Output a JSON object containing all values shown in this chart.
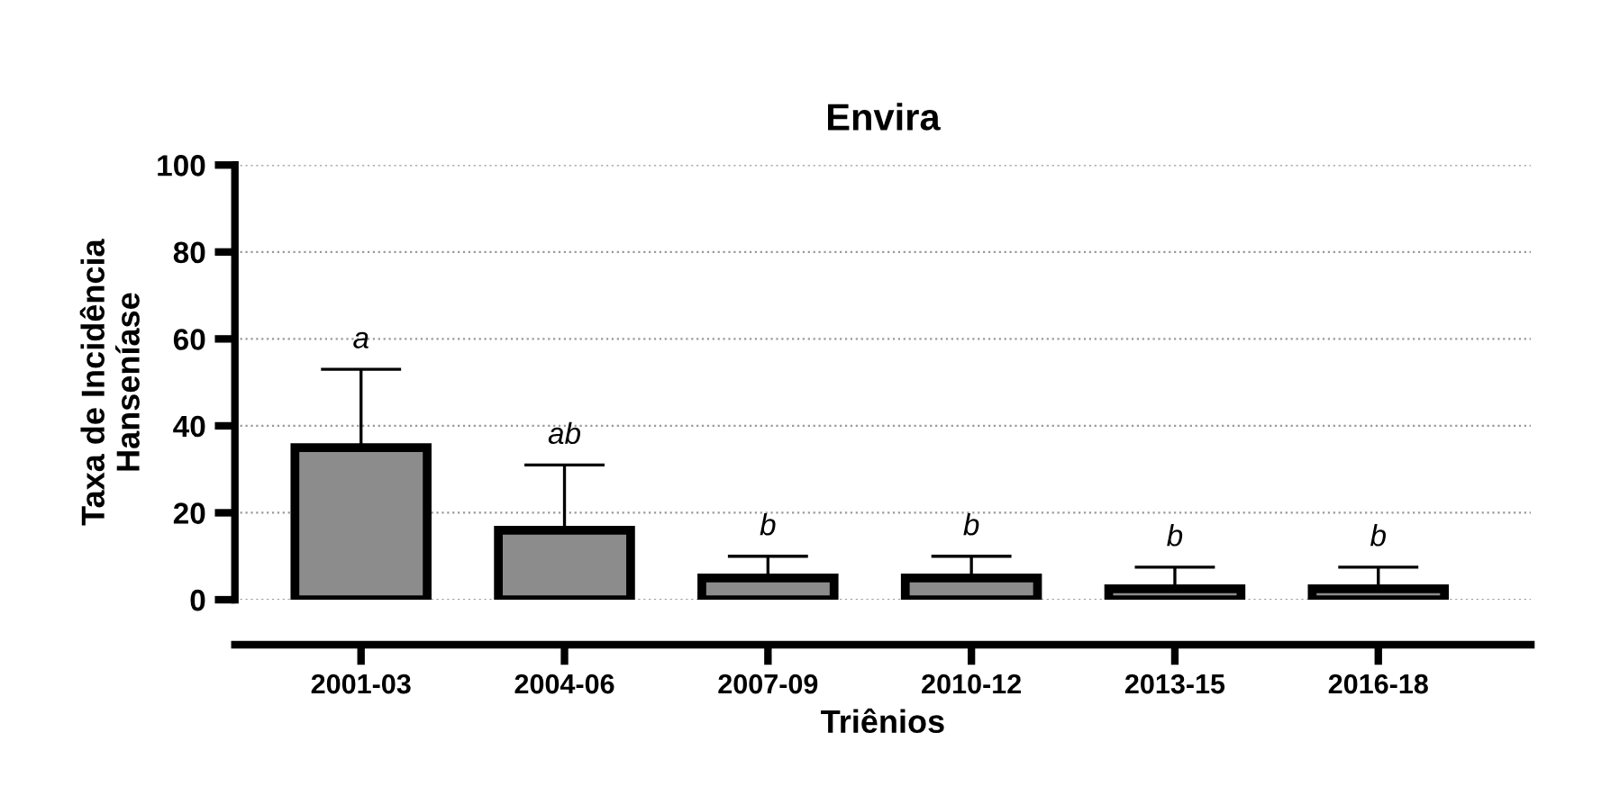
{
  "chart_data": {
    "type": "bar",
    "title": "Envira",
    "xlabel": "Triênios",
    "ylabel": "Taxa de Incidência\nHanseníase",
    "categories": [
      "2001-03",
      "2004-06",
      "2007-09",
      "2010-12",
      "2013-15",
      "2016-18"
    ],
    "values": [
      35,
      16,
      5,
      5,
      2.5,
      2.5
    ],
    "errors": [
      [
        35,
        53
      ],
      [
        16,
        31
      ],
      [
        5,
        10
      ],
      [
        5,
        10
      ],
      [
        2.5,
        7.5
      ],
      [
        2.5,
        7.5
      ]
    ],
    "color": "#8c8c8c",
    "ylim": [
      0,
      100
    ],
    "yticks": [
      0,
      20,
      40,
      60,
      80,
      100
    ],
    "grid": "y",
    "legend": false,
    "annotations": [
      "a",
      "ab",
      "b",
      "b",
      "b",
      "b"
    ]
  }
}
